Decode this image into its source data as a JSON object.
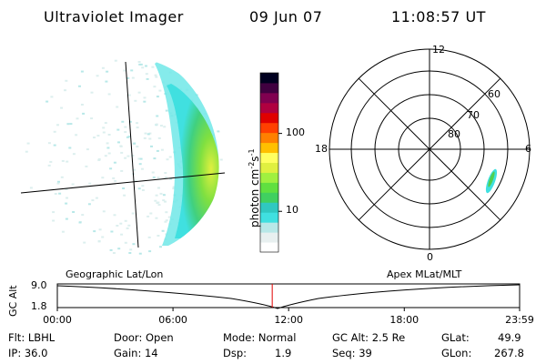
{
  "header": {
    "instrument": "Ultraviolet Imager",
    "date": "09 Jun 07",
    "time": "11:08:57 UT"
  },
  "colorbar": {
    "label": "photon cm",
    "label_exp1": "-2",
    "label_mid": "s",
    "label_exp2": "-1",
    "ticks": [
      {
        "value": 100,
        "label": "100"
      },
      {
        "value": 10,
        "label": "10"
      }
    ],
    "scale": "log",
    "range": [
      3,
      600
    ],
    "colors": [
      "#ffffff",
      "#e8f0f0",
      "#b8e8e8",
      "#40e0e0",
      "#30c8c0",
      "#40d060",
      "#60e040",
      "#a0f040",
      "#e0f040",
      "#ffff60",
      "#ffc000",
      "#ff8000",
      "#ff4000",
      "#e00000",
      "#b00040",
      "#800050",
      "#400040",
      "#000020"
    ]
  },
  "polar_plot": {
    "mlt_labels": {
      "top": "12",
      "bottom": "0",
      "left": "18",
      "right": "6"
    },
    "lat_labels": [
      "60",
      "70",
      "80"
    ]
  },
  "timeline": {
    "left_title": "Geographic Lat/Lon",
    "right_title": "Apex MLat/MLT",
    "y_axis_label": "GC Alt",
    "y_ticks": [
      "9.0",
      "1.8"
    ],
    "x_ticks": [
      "00:00",
      "06:00",
      "12:00",
      "18:00",
      "23:59"
    ],
    "current_time_marker": "11:08:57",
    "marker_color": "#e00000"
  },
  "info": {
    "flt": "Flt: LBHL",
    "ip": "IP: 36.0",
    "door": "Door: Open",
    "gain": "Gain: 14",
    "mode": "Mode: Normal",
    "dsp_label": "Dsp:",
    "dsp_value": "1.9",
    "gc_alt": "GC Alt: 2.5 Re",
    "seq": "Seq: 39",
    "glat_label": "GLat:",
    "glat_value": "49.9",
    "glon_label": "GLon:",
    "glon_value": "267.8"
  }
}
